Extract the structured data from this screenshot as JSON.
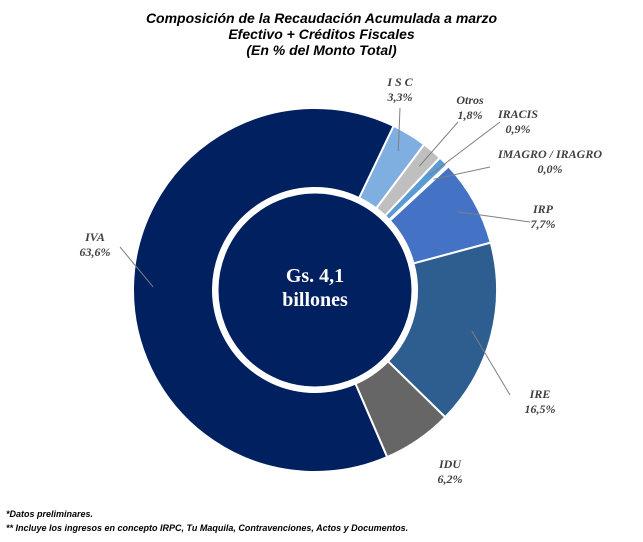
{
  "chart_data": {
    "type": "pie",
    "title": "Composición de la Recaudación Acumulada a marzo",
    "subtitle": "Efectivo + Créditos Fiscales",
    "subtitle2": "(En % del Monto Total)",
    "center_label": [
      "Gs. 4,1",
      "billones"
    ],
    "slices": [
      {
        "name": "I S C",
        "value": 3.3,
        "label": "3,3%",
        "color": "#7FAEE0"
      },
      {
        "name": "Otros",
        "value": 1.8,
        "label": "1,8%",
        "color": "#BFBFBF"
      },
      {
        "name": "IRACIS",
        "value": 0.9,
        "label": "0,9%",
        "color": "#5B9BD5"
      },
      {
        "name": "IMAGRO / IRAGRO",
        "value": 0.0,
        "label": "0,0%",
        "color": "#4472C4"
      },
      {
        "name": "IRP",
        "value": 7.7,
        "label": "7,7%",
        "color": "#4472C4"
      },
      {
        "name": "IRE",
        "value": 16.5,
        "label": "16,5%",
        "color": "#2E5D8F"
      },
      {
        "name": "IDU",
        "value": 6.2,
        "label": "6,2%",
        "color": "#666666"
      },
      {
        "name": "IVA",
        "value": 63.6,
        "label": "63,6%",
        "color": "#002060"
      }
    ]
  },
  "notes": {
    "note1": "*Datos preliminares.",
    "note2": "** Incluye los ingresos en concepto IRPC, Tu Maquila, Contravenciones, Actos y Documentos."
  }
}
